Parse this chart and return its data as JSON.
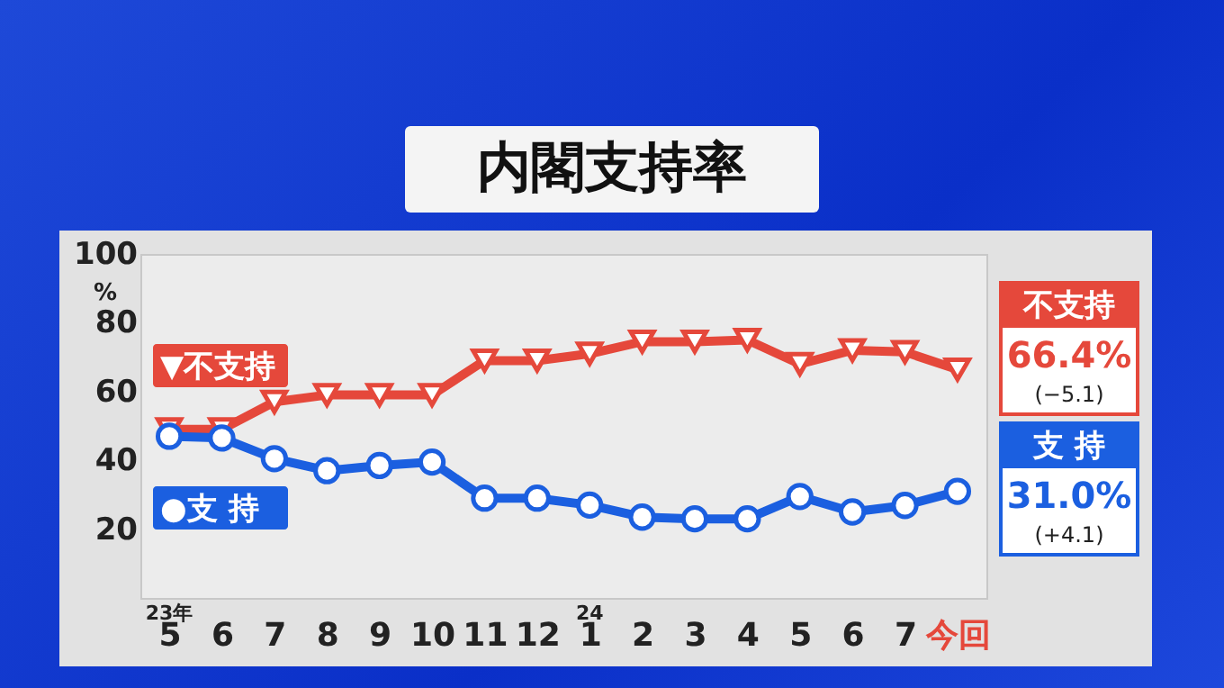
{
  "chart_data": {
    "type": "line",
    "title": "内閣支持率",
    "ylabel": "%",
    "categories": [
      "5",
      "6",
      "7",
      "8",
      "9",
      "10",
      "11",
      "12",
      "1",
      "2",
      "3",
      "4",
      "5",
      "6",
      "7",
      "今回"
    ],
    "ylim": [
      0,
      100
    ],
    "yticks": [
      20,
      40,
      60,
      80,
      {
        "value": 100,
        "label": "100"
      }
    ],
    "series": [
      {
        "name": "▼不支持",
        "color": "#e5483b",
        "marker": "triangle",
        "values": [
          49,
          49,
          57,
          59,
          59,
          59,
          69,
          69,
          71,
          74.5,
          74.5,
          75,
          68,
          72,
          71.5,
          66.4
        ]
      },
      {
        "name": "●支 持",
        "color": "#1b5fe0",
        "marker": "circle",
        "values": [
          47,
          46.5,
          40.5,
          37,
          38.5,
          39.5,
          29,
          29,
          27,
          23.5,
          23,
          23,
          29.5,
          25,
          26.9,
          31.0
        ]
      }
    ],
    "annotations": [
      "不支持",
      "66.4%",
      "(−5.1)",
      "支 持",
      "31.0%",
      "(+4.1)",
      "23年",
      "24"
    ]
  }
}
